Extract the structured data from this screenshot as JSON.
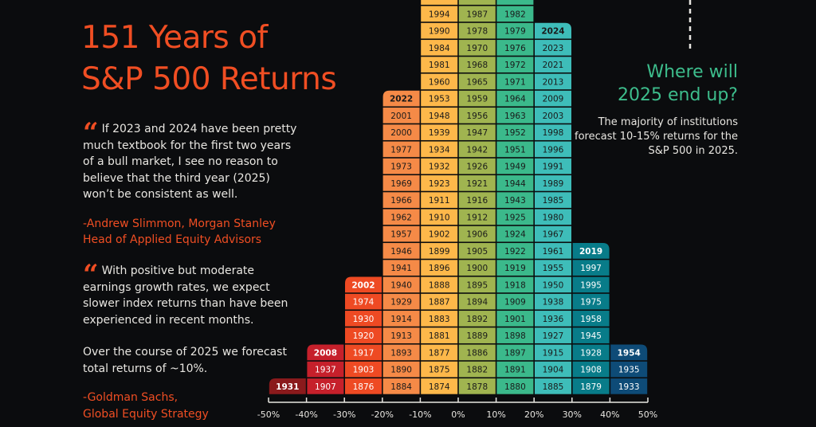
{
  "title": {
    "line1": "151 Years of",
    "line2": "S&P 500 Returns"
  },
  "quotes": [
    {
      "icon": "quote-mark-icon",
      "text": "If 2023 and 2024 have been pretty much textbook for the first two years of a bull market, I see no reason to believe that the third year (2025) won’t be consistent as well.",
      "extra": "",
      "attribution_1": "-Andrew Slimmon, Morgan Stanley",
      "attribution_2": "Head of Applied Equity Advisors"
    },
    {
      "icon": "quote-mark-icon",
      "text": "With positive but moderate earnings growth rates, we expect slower index returns than have been experienced in recent months.",
      "extra": "Over the course of 2025 we forecast total returns of ~10%.",
      "attribution_1": "-Goldman Sachs,",
      "attribution_2": "Global Equity Strategy"
    }
  ],
  "forecast": {
    "heading_1": "Where will",
    "heading_2": "2025 end up?",
    "text": "The majority of institutions forecast 10-15% returns for the S&P 500 in 2025."
  },
  "chart_data": {
    "type": "histogram",
    "title": "151 Years of S&P 500 Returns",
    "xlabel": "",
    "ylabel": "",
    "tick_labels": [
      "-50%",
      "-40%",
      "-30%",
      "-20%",
      "-10%",
      "0%",
      "10%",
      "20%",
      "30%",
      "40%",
      "50%"
    ],
    "xlim": [
      -50,
      50
    ],
    "grid": false,
    "note": "",
    "bins": [
      {
        "range": [
          -50,
          -40
        ],
        "color": "#8a1a1c",
        "text_color": "#ffffff",
        "years": [
          "1931"
        ]
      },
      {
        "range": [
          -40,
          -30
        ],
        "color": "#c6202b",
        "text_color": "#ffffff",
        "years": [
          "1907",
          "1937",
          "2008"
        ]
      },
      {
        "range": [
          -30,
          -20
        ],
        "color": "#ee4a23",
        "text_color": "#ffffff",
        "years": [
          "1876",
          "1903",
          "1917",
          "1920",
          "1930",
          "1974",
          "2002"
        ]
      },
      {
        "range": [
          -20,
          -10
        ],
        "color": "#f58a47",
        "text_color": "#1a1a1a",
        "years": [
          "1884",
          "1890",
          "1893",
          "1913",
          "1914",
          "1929",
          "1940",
          "1941",
          "1946",
          "1957",
          "1962",
          "1966",
          "1969",
          "1973",
          "1977",
          "2000",
          "2001",
          "2022"
        ]
      },
      {
        "range": [
          -10,
          0
        ],
        "color": "#fdb84a",
        "text_color": "#1a1a1a",
        "clipped_top": true,
        "years": [
          "1874",
          "1875",
          "1877",
          "1881",
          "1883",
          "1887",
          "1888",
          "1896",
          "1899",
          "1902",
          "1910",
          "1911",
          "1923",
          "1932",
          "1934",
          "1939",
          "1948",
          "1953",
          "1960",
          "1981",
          "1984",
          "1990",
          "1994"
        ]
      },
      {
        "range": [
          0,
          10
        ],
        "color": "#a0b450",
        "text_color": "#1a1a1a",
        "clipped_top": true,
        "years": [
          "1878",
          "1882",
          "1886",
          "1889",
          "1892",
          "1894",
          "1895",
          "1900",
          "1905",
          "1906",
          "1912",
          "1916",
          "1921",
          "1926",
          "1942",
          "1947",
          "1956",
          "1959",
          "1965",
          "1968",
          "1970",
          "1978",
          "1987"
        ]
      },
      {
        "range": [
          10,
          20
        ],
        "color": "#3bb98b",
        "text_color": "#1a1a1a",
        "clipped_top": true,
        "years": [
          "1880",
          "1891",
          "1897",
          "1898",
          "1901",
          "1909",
          "1918",
          "1919",
          "1922",
          "1924",
          "1925",
          "1943",
          "1944",
          "1949",
          "1951",
          "1952",
          "1963",
          "1964",
          "1971",
          "1972",
          "1976",
          "1979",
          "1982"
        ]
      },
      {
        "range": [
          20,
          30
        ],
        "color": "#3ebdb9",
        "text_color": "#1a1a1a",
        "years": [
          "1885",
          "1904",
          "1915",
          "1927",
          "1936",
          "1938",
          "1950",
          "1955",
          "1961",
          "1967",
          "1980",
          "1985",
          "1989",
          "1991",
          "1996",
          "1998",
          "2003",
          "2009",
          "2013",
          "2021",
          "2023",
          "2024"
        ]
      },
      {
        "range": [
          30,
          40
        ],
        "color": "#087c89",
        "text_color": "#ffffff",
        "years": [
          "1879",
          "1908",
          "1928",
          "1945",
          "1958",
          "1975",
          "1995",
          "1997",
          "2019"
        ]
      },
      {
        "range": [
          40,
          50
        ],
        "color": "#0e4b77",
        "text_color": "#ffffff",
        "years": [
          "1933",
          "1935",
          "1954"
        ]
      }
    ]
  }
}
